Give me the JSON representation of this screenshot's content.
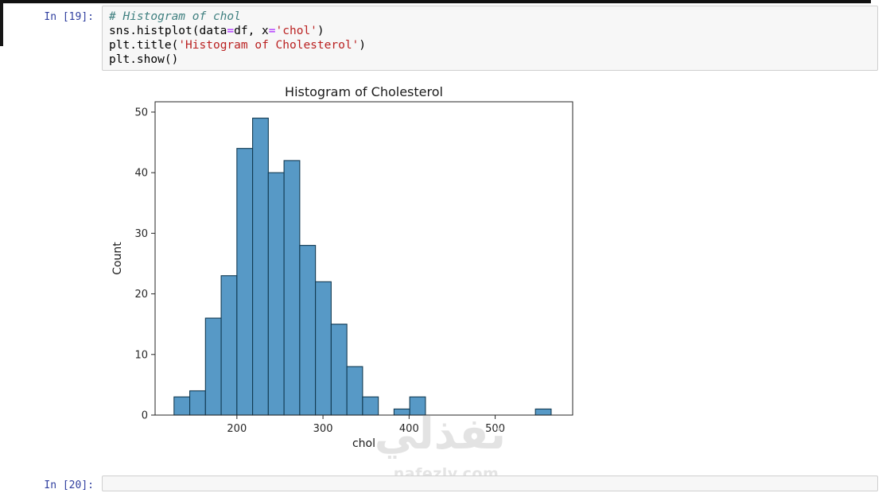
{
  "page": {
    "watermark_logo": "نفذلي",
    "watermark_url": "nafezly.com"
  },
  "cell": {
    "prompt": "In [19]:",
    "code_lines": [
      [
        {
          "t": "# Histogram of chol",
          "c": "comment"
        }
      ],
      [
        {
          "t": "sns.histplot(data",
          "c": "plain"
        },
        {
          "t": "=",
          "c": "op"
        },
        {
          "t": "df, x",
          "c": "plain"
        },
        {
          "t": "=",
          "c": "op"
        },
        {
          "t": "'chol'",
          "c": "str"
        },
        {
          "t": ")",
          "c": "plain"
        }
      ],
      [
        {
          "t": "plt.title(",
          "c": "plain"
        },
        {
          "t": "'Histogram of Cholesterol'",
          "c": "str"
        },
        {
          "t": ")",
          "c": "plain"
        }
      ],
      [
        {
          "t": "plt.show()",
          "c": "plain"
        }
      ]
    ]
  },
  "next_cell": {
    "prompt": "In [20]:"
  },
  "chart_data": {
    "type": "bar",
    "subtype": "histogram",
    "title": "Histogram of Cholesterol",
    "xlabel": "chol",
    "ylabel": "Count",
    "bin_start": 127,
    "bin_width": 18.25,
    "counts": [
      3,
      4,
      16,
      23,
      44,
      49,
      40,
      42,
      28,
      22,
      15,
      8,
      3,
      0,
      1,
      3,
      0,
      0,
      0,
      0,
      0,
      0,
      0,
      1
    ],
    "xlim": [
      105,
      590
    ],
    "ylim": [
      0,
      51.7
    ],
    "xticks": [
      200,
      300,
      400,
      500
    ],
    "yticks": [
      0,
      10,
      20,
      30,
      40,
      50
    ],
    "grid": false,
    "legend": null,
    "bar_color": "#5799c6",
    "bar_edge_color": "#123a52",
    "axes_color": "#262626"
  }
}
